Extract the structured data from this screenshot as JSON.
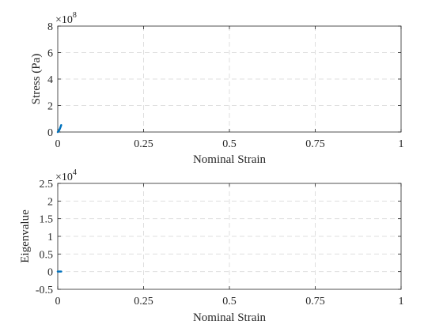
{
  "chart_data": [
    {
      "type": "line",
      "title": "",
      "xlabel": "Nominal Strain",
      "ylabel": "Stress (Pa)",
      "exponent_base": "×10",
      "exponent_power": "8",
      "xlim": [
        0,
        1
      ],
      "ylim": [
        0,
        8
      ],
      "xticks": [
        0,
        0.25,
        0.5,
        0.75,
        1
      ],
      "xtick_labels": [
        "0",
        "0.25",
        "0.5",
        "0.75",
        "1"
      ],
      "yticks": [
        0,
        2,
        4,
        6,
        8
      ],
      "ytick_labels": [
        "0",
        "2",
        "4",
        "6",
        "8"
      ],
      "grid": true,
      "series": [
        {
          "color": "#0072BD",
          "x": [
            0,
            0.002,
            0.004,
            0.006,
            0.008,
            0.01
          ],
          "y": [
            0,
            0.05,
            0.13,
            0.24,
            0.37,
            0.52
          ]
        }
      ]
    },
    {
      "type": "line",
      "title": "",
      "xlabel": "Nominal Strain",
      "ylabel": "Eigenvalue",
      "exponent_base": "×10",
      "exponent_power": "4",
      "xlim": [
        0,
        1
      ],
      "ylim": [
        -0.5,
        2.5
      ],
      "xticks": [
        0,
        0.25,
        0.5,
        0.75,
        1
      ],
      "xtick_labels": [
        "0",
        "0.25",
        "0.5",
        "0.75",
        "1"
      ],
      "yticks": [
        -0.5,
        0,
        0.5,
        1,
        1.5,
        2,
        2.5
      ],
      "ytick_labels": [
        "-0.5",
        "0",
        "0.5",
        "1",
        "1.5",
        "2",
        "2.5"
      ],
      "grid": true,
      "series": [
        {
          "color": "#0072BD",
          "x": [
            0,
            0.002,
            0.004,
            0.006,
            0.008,
            0.01
          ],
          "y": [
            0.005,
            0.005,
            0.005,
            0.005,
            0.005,
            0.005
          ]
        }
      ]
    }
  ]
}
